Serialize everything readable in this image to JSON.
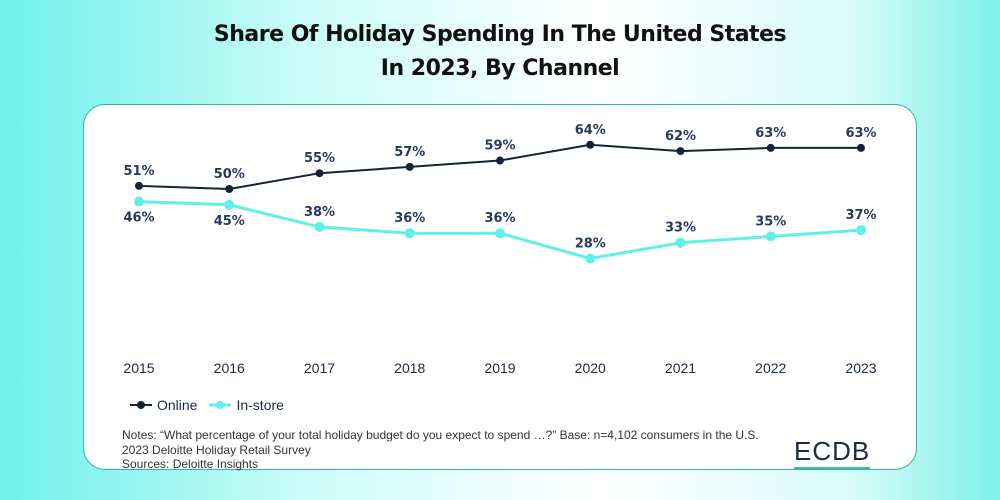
{
  "chart_data": {
    "type": "line",
    "title": "Share Of Holiday Spending In The United States In 2023, By Channel",
    "title_lines": [
      "Share Of Holiday Spending In The United States",
      "In 2023, By Channel"
    ],
    "categories": [
      "2015",
      "2016",
      "2017",
      "2018",
      "2019",
      "2020",
      "2021",
      "2022",
      "2023"
    ],
    "series": [
      {
        "name": "Online",
        "color": "#152238",
        "values": [
          51,
          50,
          55,
          57,
          59,
          64,
          62,
          63,
          63
        ]
      },
      {
        "name": "In-store",
        "color": "#5ff0e6",
        "values": [
          46,
          45,
          38,
          36,
          36,
          28,
          33,
          35,
          37
        ]
      }
    ],
    "data_label_suffix": "%",
    "ylim": [
      0,
      70
    ],
    "grid": false,
    "legend": "bottom-left"
  },
  "notes": [
    "Notes: “What percentage of your total holiday budget do you expect to spend …?” Base: n=4,102 consumers in the U.S. 2023 Deloitte Holiday Retail Survey",
    "Sources: Deloitte Insights"
  ],
  "logo": "ECDB"
}
